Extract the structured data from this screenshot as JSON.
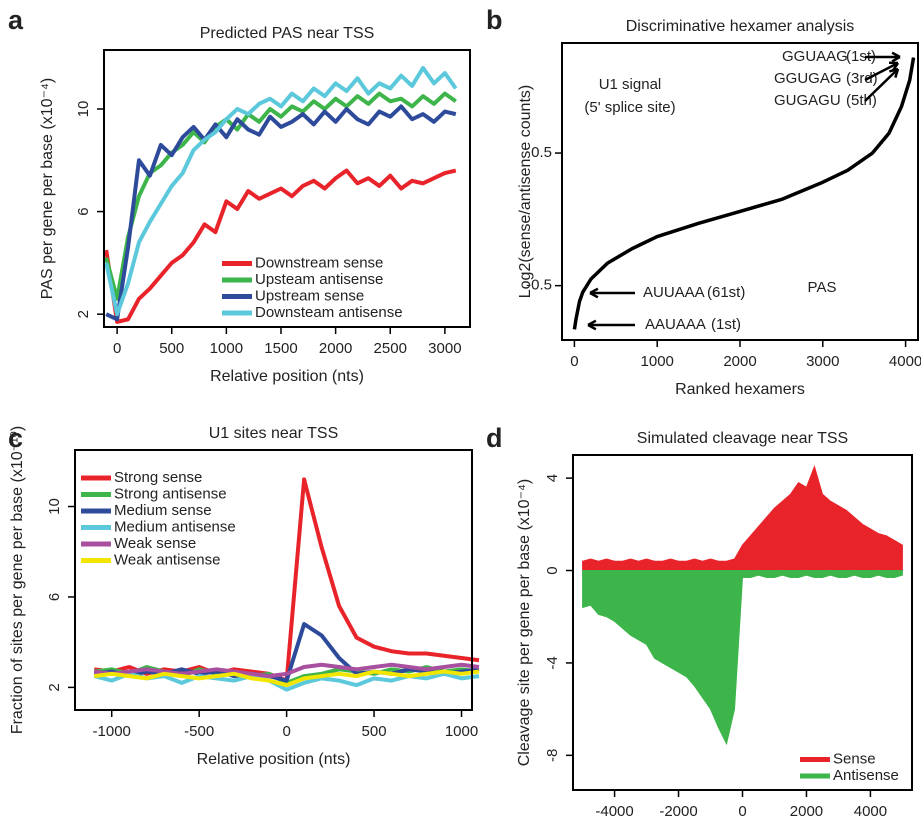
{
  "chart_data": [
    {
      "type": "line",
      "panel_label": "a",
      "title": "Predicted PAS near TSS",
      "x_label": "Relative position (nts)",
      "y_label": "PAS per gene per base (x10⁻⁴)",
      "x": [
        -100,
        0,
        100,
        200,
        300,
        400,
        500,
        600,
        700,
        800,
        900,
        1000,
        1100,
        1200,
        1300,
        1400,
        1500,
        1600,
        1700,
        1800,
        1900,
        2000,
        2100,
        2200,
        2300,
        2400,
        2500,
        2600,
        2700,
        2800,
        2900,
        3000,
        3100
      ],
      "series": [
        {
          "name": "Downstream sense",
          "color": "#e8242a",
          "values": [
            4.5,
            1.7,
            1.8,
            2.6,
            3.0,
            3.5,
            4.0,
            4.3,
            4.8,
            5.5,
            5.2,
            6.4,
            6.1,
            6.8,
            6.5,
            6.7,
            6.9,
            6.6,
            7.0,
            7.2,
            6.9,
            7.3,
            7.6,
            7.1,
            7.3,
            7.0,
            7.4,
            6.9,
            7.2,
            7.1,
            7.3,
            7.5,
            7.6
          ]
        },
        {
          "name": "Upsteam antisense",
          "color": "#3db54a",
          "values": [
            4.2,
            2.6,
            5.0,
            6.6,
            7.5,
            7.8,
            8.3,
            8.6,
            9.1,
            8.7,
            9.3,
            9.6,
            9.2,
            9.8,
            9.5,
            10.0,
            9.7,
            10.1,
            9.9,
            10.3,
            10.0,
            10.4,
            10.1,
            10.5,
            10.2,
            10.6,
            10.3,
            10.4,
            10.1,
            10.5,
            10.2,
            10.6,
            10.3
          ]
        },
        {
          "name": "Upstream sense",
          "color": "#2e4b9b",
          "values": [
            2.0,
            1.8,
            4.6,
            8.0,
            7.4,
            8.6,
            8.2,
            8.9,
            9.3,
            8.8,
            9.4,
            8.9,
            9.6,
            9.2,
            9.0,
            9.7,
            9.3,
            9.5,
            9.8,
            9.4,
            9.9,
            9.5,
            10.0,
            9.6,
            9.4,
            9.9,
            9.7,
            10.1,
            9.6,
            9.8,
            9.5,
            9.9,
            9.8
          ]
        },
        {
          "name": "Downsteam antisense",
          "color": "#5bc8dc",
          "values": [
            4.0,
            2.0,
            3.2,
            4.8,
            5.6,
            6.3,
            7.0,
            7.5,
            8.4,
            8.8,
            9.1,
            9.6,
            10.0,
            9.8,
            10.2,
            10.4,
            10.1,
            10.6,
            10.3,
            10.8,
            10.5,
            11.0,
            10.7,
            11.2,
            10.6,
            11.0,
            10.8,
            11.3,
            10.9,
            11.6,
            11.0,
            11.4,
            10.8
          ]
        }
      ],
      "xlim": [
        -120,
        3230
      ],
      "xticks": [
        0,
        500,
        1000,
        1500,
        2000,
        2500,
        3000
      ],
      "ylim": [
        1.5,
        12.3
      ],
      "yticks": [
        2,
        6,
        10
      ],
      "legend": "lower right"
    },
    {
      "type": "line",
      "panel_label": "b",
      "title": "Discriminative hexamer analysis",
      "x_label": "Ranked hexamers",
      "y_label": "Log2(sense/antisense counts)",
      "x": [
        0,
        20,
        61,
        100,
        200,
        400,
        700,
        1000,
        1500,
        2000,
        2500,
        3000,
        3300,
        3600,
        3800,
        3950,
        4050,
        4096
      ],
      "series": [
        {
          "color": "#000000",
          "values": [
            -0.83,
            -0.75,
            -0.62,
            -0.55,
            -0.45,
            -0.33,
            -0.22,
            -0.13,
            -0.03,
            0.06,
            0.15,
            0.28,
            0.37,
            0.5,
            0.65,
            0.85,
            1.05,
            1.22
          ]
        }
      ],
      "xlim": [
        -150,
        4150
      ],
      "xticks": [
        0,
        1000,
        2000,
        3000,
        4000
      ],
      "ylim": [
        -0.91,
        1.33
      ],
      "yticks": [
        -0.5,
        0.5
      ],
      "annotations": [
        {
          "text": "U1 signal",
          "color": "#e8242a"
        },
        {
          "text": "(5' splice site)",
          "color": "#e8242a"
        },
        {
          "text": "GGUAAG",
          "color": "#e8242a"
        },
        {
          "text": "(1st)",
          "color": "#6d6e71"
        },
        {
          "text": "GGUGAG",
          "color": "#e8242a"
        },
        {
          "text": "(3rd)",
          "color": "#6d6e71"
        },
        {
          "text": "GUGAGU",
          "color": "#e8242a"
        },
        {
          "text": "(5th)",
          "color": "#6d6e71"
        },
        {
          "text": "AUUAAA",
          "color": "#2e7d32"
        },
        {
          "text": "(61st)",
          "color": "#6d6e71"
        },
        {
          "text": "AAUAAA",
          "color": "#2e7d32"
        },
        {
          "text": "(1st)",
          "color": "#6d6e71"
        },
        {
          "text": "PAS",
          "color": "#2e7d32"
        }
      ]
    },
    {
      "type": "line",
      "panel_label": "c",
      "title": "U1 sites near TSS",
      "x_label": "Relative position (nts)",
      "y_label": "Fraction of sites per gene per base (x10⁻¹⁰)",
      "x": [
        -1100,
        -1000,
        -900,
        -800,
        -700,
        -600,
        -500,
        -400,
        -300,
        -200,
        -100,
        0,
        100,
        200,
        300,
        400,
        500,
        600,
        700,
        800,
        900,
        1000,
        1100
      ],
      "series": [
        {
          "name": "Strong sense",
          "color": "#e8242a",
          "values": [
            2.8,
            2.7,
            2.9,
            2.6,
            2.8,
            2.7,
            2.9,
            2.6,
            2.8,
            2.7,
            2.6,
            2.3,
            11.2,
            8.2,
            5.6,
            4.2,
            3.8,
            3.6,
            3.5,
            3.5,
            3.4,
            3.3,
            3.2
          ]
        },
        {
          "name": "Strong antisense",
          "color": "#3db54a",
          "values": [
            2.7,
            2.8,
            2.6,
            2.9,
            2.7,
            2.5,
            2.8,
            2.6,
            2.7,
            2.5,
            2.6,
            2.2,
            2.5,
            2.6,
            2.8,
            2.7,
            2.6,
            2.8,
            2.7,
            2.9,
            2.7,
            2.8,
            2.7
          ]
        },
        {
          "name": "Medium sense",
          "color": "#2e4b9b",
          "values": [
            2.6,
            2.7,
            2.5,
            2.7,
            2.6,
            2.8,
            2.6,
            2.7,
            2.5,
            2.6,
            2.5,
            2.3,
            4.8,
            4.3,
            3.3,
            2.6,
            2.7,
            2.6,
            2.8,
            2.7,
            2.6,
            2.7,
            2.8
          ]
        },
        {
          "name": "Medium antisense",
          "color": "#5bc8dc",
          "values": [
            2.5,
            2.3,
            2.6,
            2.4,
            2.5,
            2.2,
            2.5,
            2.4,
            2.3,
            2.5,
            2.3,
            1.9,
            2.2,
            2.4,
            2.3,
            2.1,
            2.4,
            2.3,
            2.5,
            2.4,
            2.6,
            2.4,
            2.5
          ]
        },
        {
          "name": "Weak sense",
          "color": "#a84f9f",
          "values": [
            2.7,
            2.6,
            2.7,
            2.8,
            2.7,
            2.6,
            2.7,
            2.8,
            2.7,
            2.6,
            2.5,
            2.6,
            2.9,
            3.0,
            2.9,
            2.8,
            2.9,
            3.0,
            2.9,
            2.8,
            2.9,
            3.0,
            2.9
          ]
        },
        {
          "name": "Weak antisense",
          "color": "#f2e600",
          "values": [
            2.5,
            2.6,
            2.5,
            2.4,
            2.6,
            2.5,
            2.4,
            2.5,
            2.6,
            2.4,
            2.3,
            2.1,
            2.4,
            2.5,
            2.6,
            2.5,
            2.7,
            2.6,
            2.5,
            2.6,
            2.7,
            2.6,
            2.7
          ]
        }
      ],
      "xlim": [
        -1210,
        1060
      ],
      "xticks": [
        -1000,
        -500,
        0,
        500,
        1000
      ],
      "ylim": [
        1.0,
        12.5
      ],
      "yticks": [
        2,
        6,
        10
      ],
      "legend": "upper left"
    },
    {
      "type": "area",
      "panel_label": "d",
      "title": "Simulated cleavage near TSS",
      "x_label": "Relative position (nts)",
      "y_label": "Cleavage site per gene per base (x10⁻⁴)",
      "x": [
        -5000,
        -4750,
        -4500,
        -4250,
        -4000,
        -3750,
        -3500,
        -3250,
        -3000,
        -2750,
        -2500,
        -2250,
        -2000,
        -1750,
        -1500,
        -1250,
        -1000,
        -750,
        -500,
        -250,
        0,
        250,
        500,
        750,
        1000,
        1250,
        1500,
        1750,
        2000,
        2250,
        2500,
        2750,
        3000,
        3250,
        3500,
        3750,
        4000,
        4250,
        4500,
        4750,
        5000
      ],
      "series": [
        {
          "name": "Sense",
          "color": "#e8242a",
          "values": [
            0.4,
            0.5,
            0.4,
            0.5,
            0.4,
            0.4,
            0.5,
            0.4,
            0.5,
            0.4,
            0.4,
            0.5,
            0.4,
            0.4,
            0.5,
            0.4,
            0.5,
            0.4,
            0.4,
            0.5,
            1.1,
            1.5,
            1.9,
            2.3,
            2.7,
            3.0,
            3.3,
            3.8,
            3.6,
            4.5,
            3.3,
            3.0,
            2.8,
            2.6,
            2.3,
            2.0,
            1.8,
            1.6,
            1.5,
            1.3,
            1.1
          ]
        },
        {
          "name": "Antisense",
          "color": "#3db54a",
          "values": [
            -1.6,
            -1.5,
            -1.9,
            -2.0,
            -2.2,
            -2.5,
            -2.8,
            -3.0,
            -3.2,
            -3.8,
            -4.0,
            -4.2,
            -4.4,
            -4.6,
            -5.0,
            -5.5,
            -6.0,
            -6.8,
            -7.5,
            -6.0,
            -0.3,
            -0.3,
            -0.2,
            -0.3,
            -0.3,
            -0.2,
            -0.3,
            -0.3,
            -0.2,
            -0.3,
            -0.3,
            -0.2,
            -0.3,
            -0.3,
            -0.2,
            -0.3,
            -0.3,
            -0.2,
            -0.3,
            -0.3,
            -0.2
          ]
        }
      ],
      "xlim": [
        -5300,
        5300
      ],
      "xticks": [
        -4000,
        -2000,
        0,
        2000,
        4000
      ],
      "ylim": [
        -9.5,
        5
      ],
      "yticks": [
        -8,
        -4,
        0,
        4
      ],
      "legend": "lower right"
    }
  ]
}
